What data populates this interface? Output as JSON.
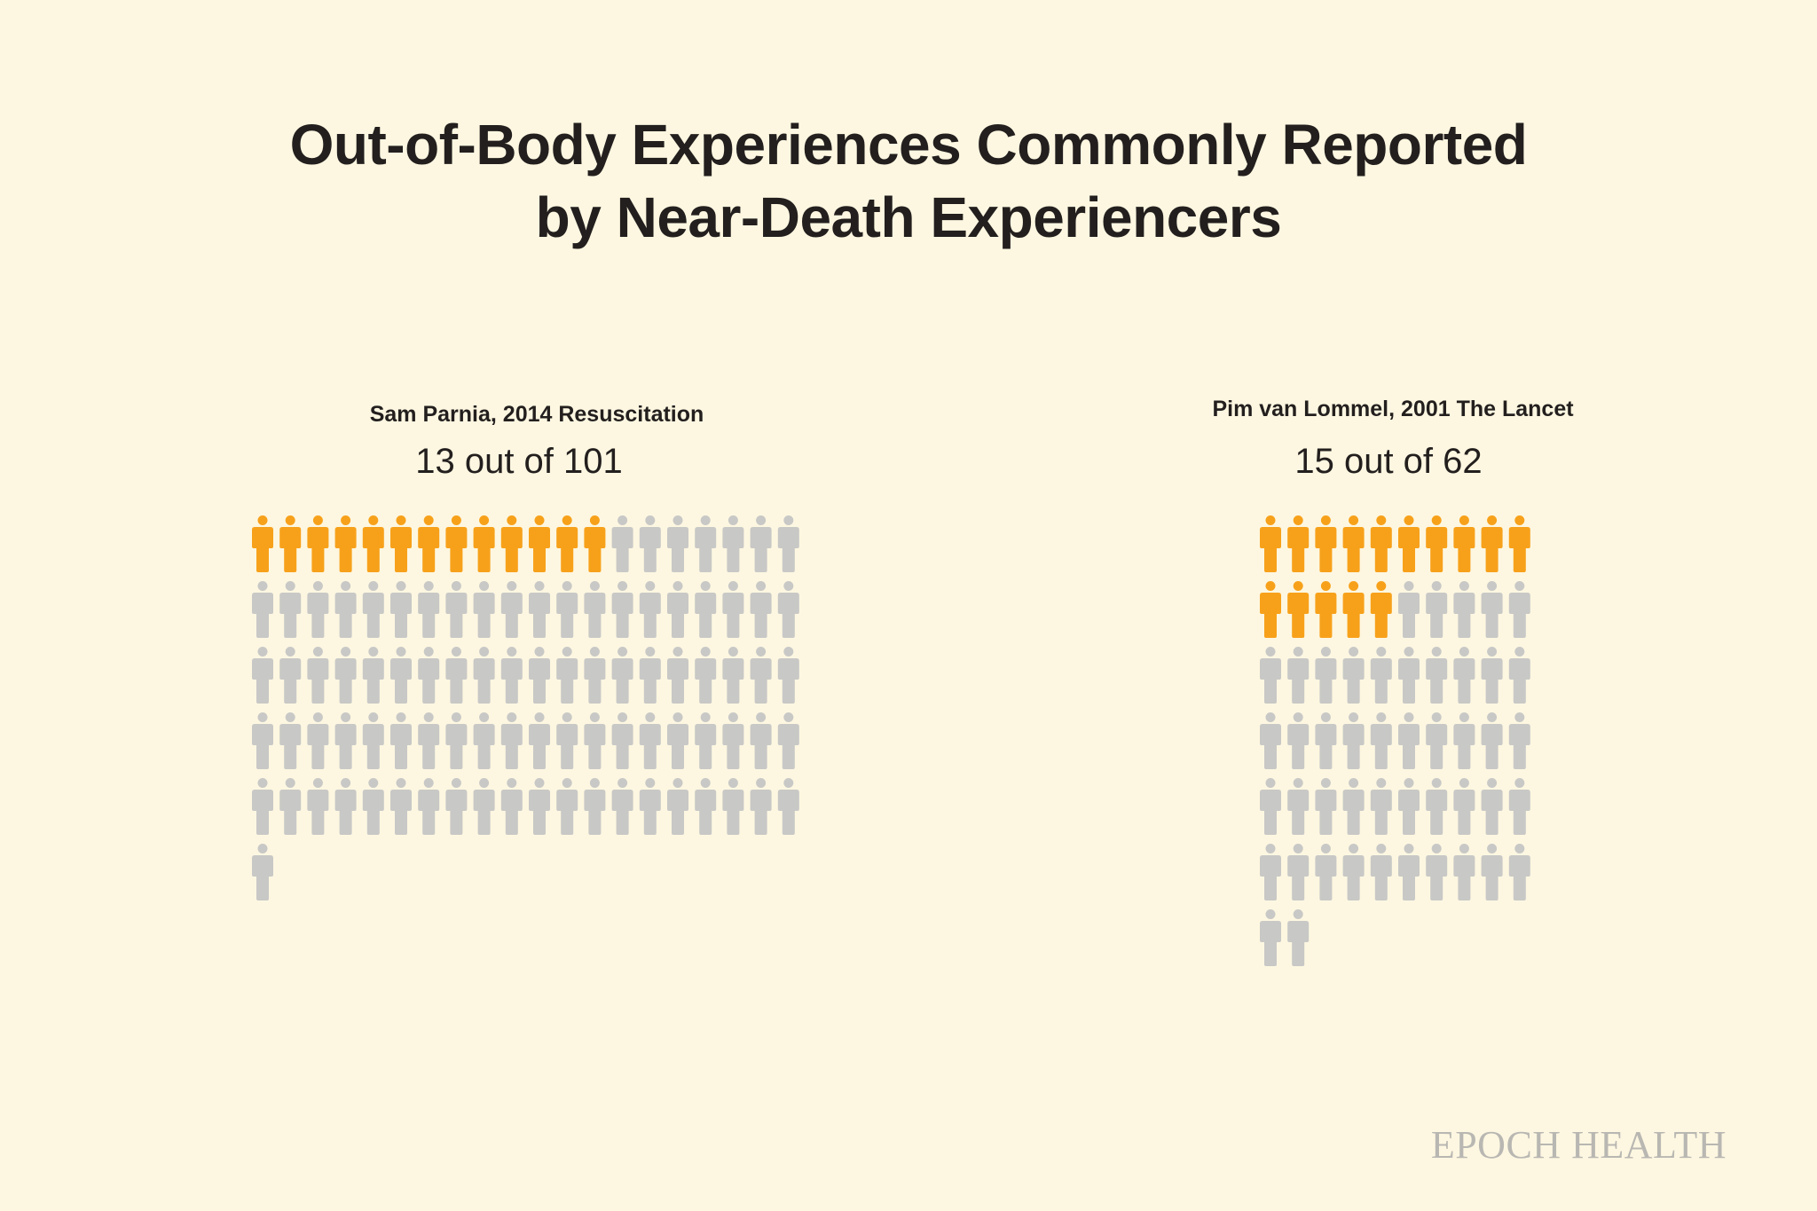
{
  "title": {
    "line1": "Out-of-Body Experiences Commonly Reported",
    "line2": "by Near-Death Experiencers"
  },
  "brand": "EPOCH HEALTH",
  "colors": {
    "background": "#fdf7e1",
    "highlight": "#f7a11a",
    "base": "#c8c8c6",
    "text": "#231f1e",
    "brand": "#b9b7b2"
  },
  "chart_data": [
    {
      "type": "pictogram",
      "source": "Sam Parnia, 2014 Resuscitation",
      "label": "13 out of 101",
      "highlighted": 13,
      "total": 101,
      "per_row": 20
    },
    {
      "type": "pictogram",
      "source": "Pim van Lommel, 2001 The Lancet",
      "label": "15 out of 62",
      "highlighted": 15,
      "total": 62,
      "per_row": 10
    }
  ]
}
